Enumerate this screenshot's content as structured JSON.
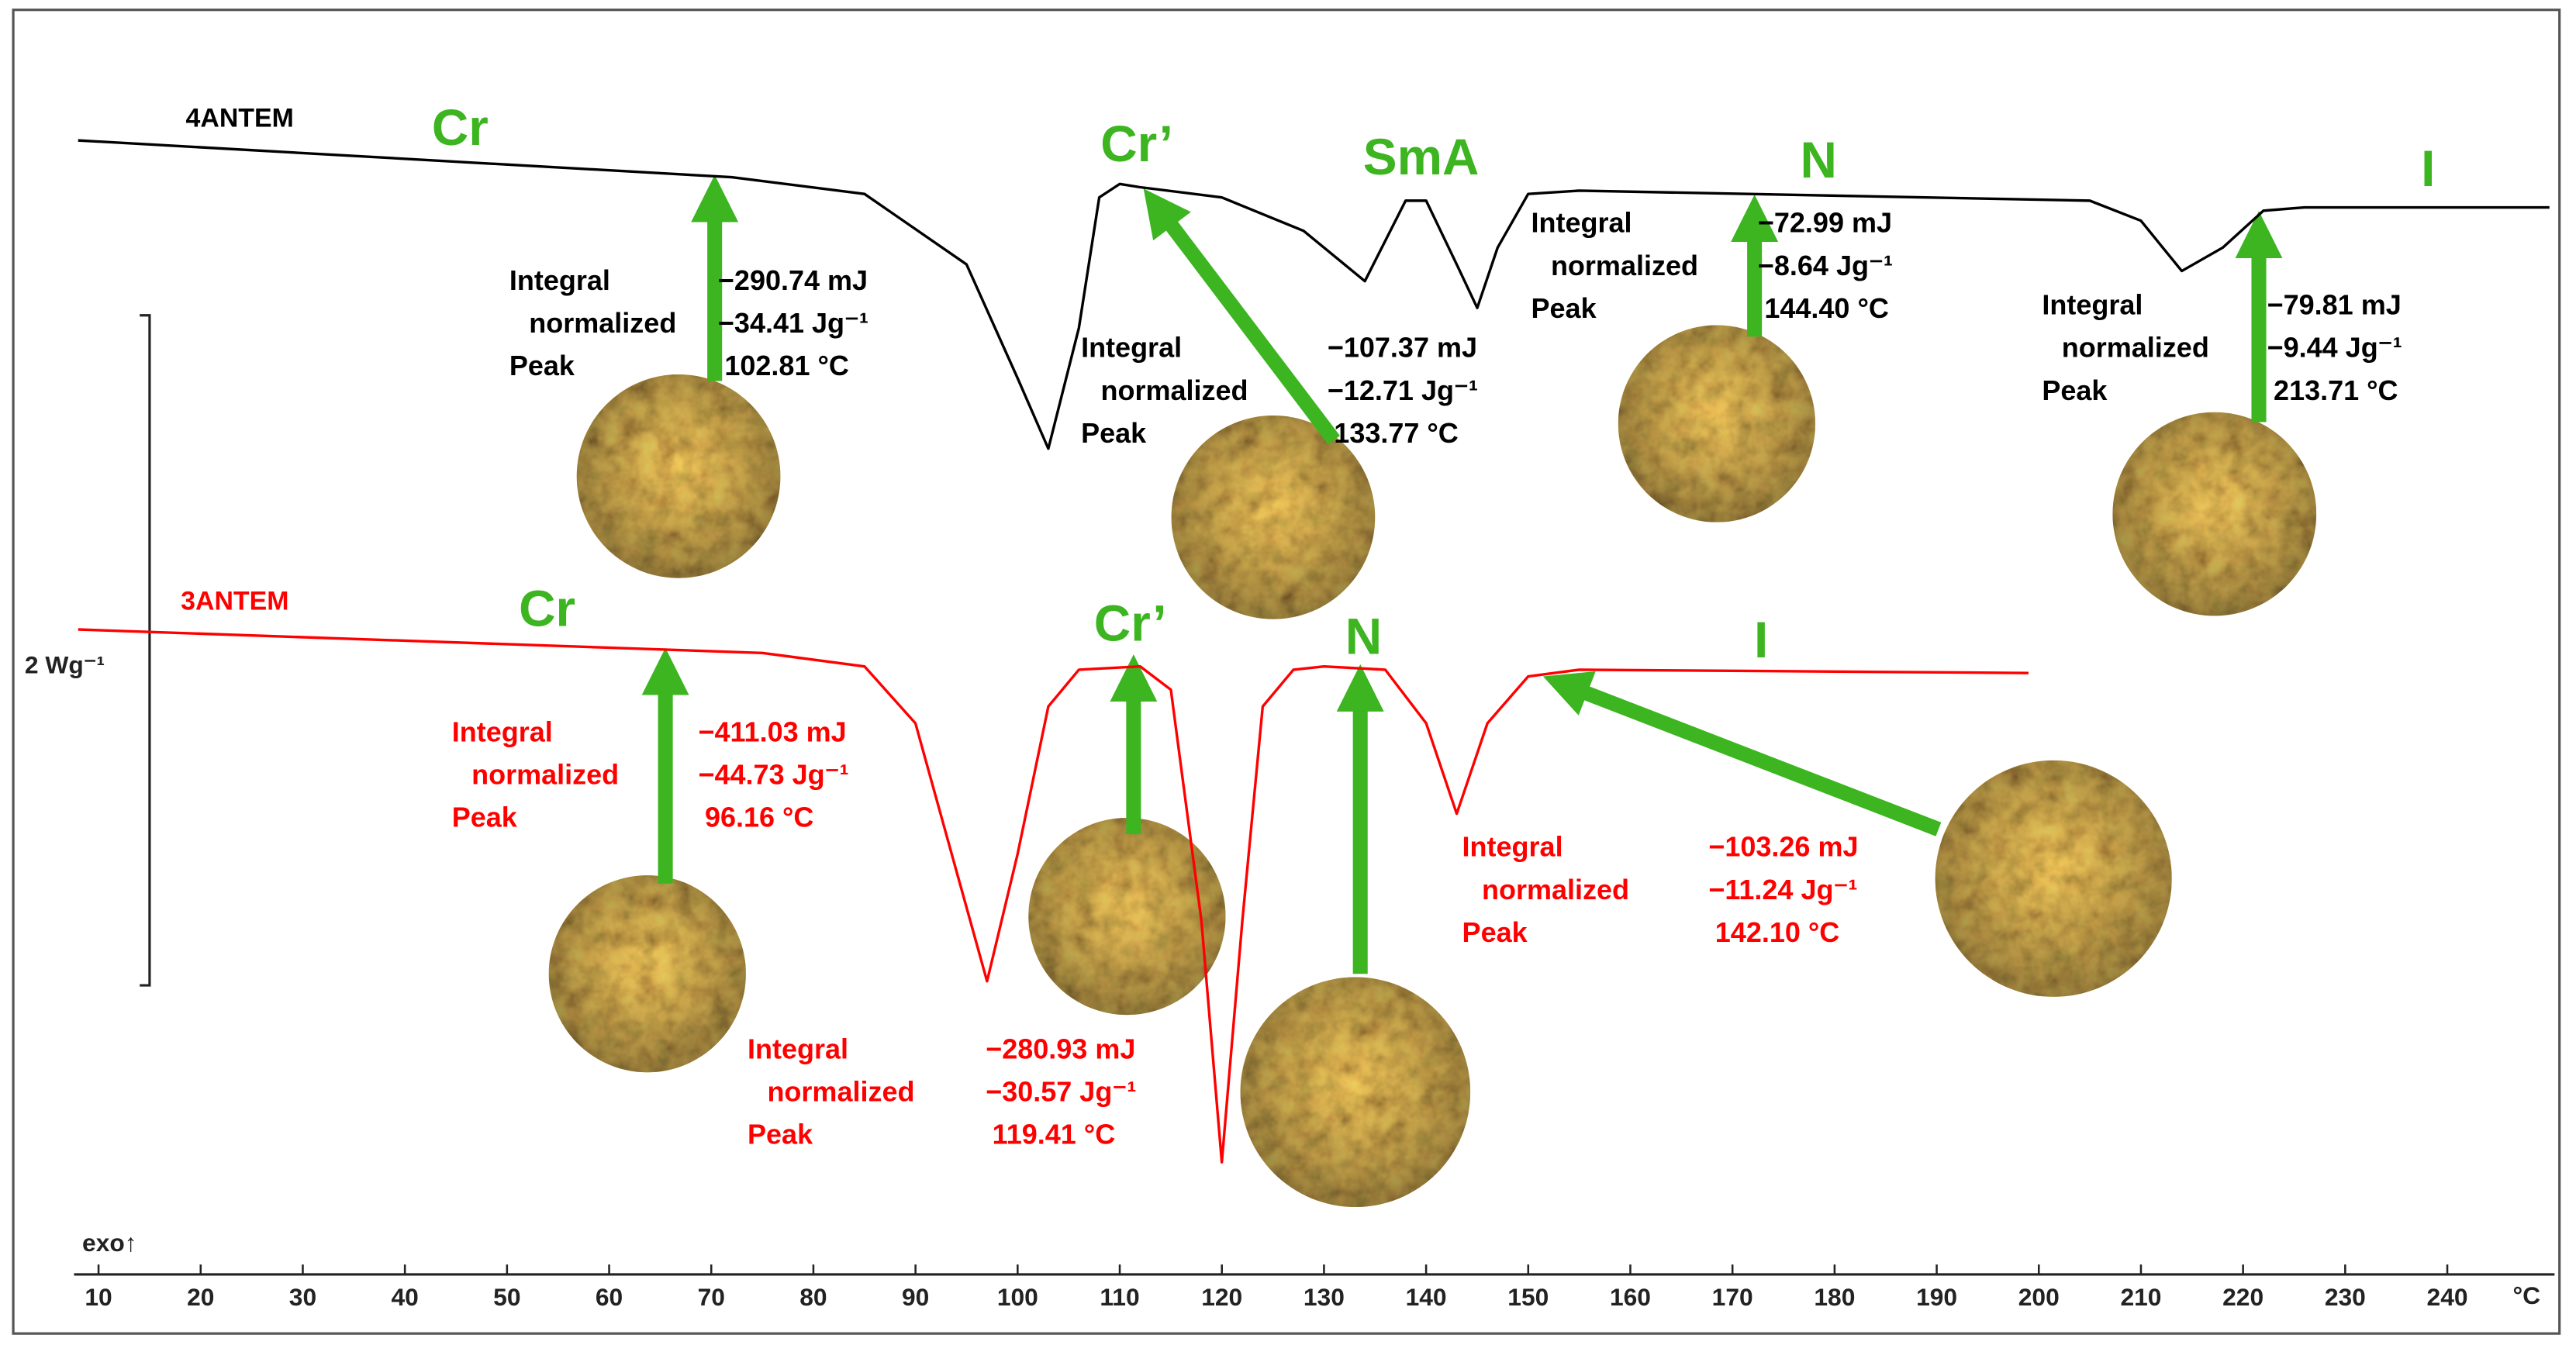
{
  "chart_data": {
    "type": "line",
    "x_label": "°C",
    "corner_label": "exo↑",
    "xlim": [
      7.6,
      250.5
    ],
    "xticks": [
      10,
      20,
      30,
      40,
      50,
      60,
      70,
      80,
      90,
      100,
      110,
      120,
      130,
      140,
      150,
      160,
      170,
      180,
      190,
      200,
      210,
      220,
      230,
      240
    ],
    "ylim": [
      -1.9,
      1.85
    ],
    "scale_bar": {
      "label": "2 Wg⁻¹",
      "value": 2
    },
    "series": [
      {
        "name": "4ANTEM",
        "color": "#000000",
        "x": [
          8,
          72,
          85,
          95,
          100,
          103,
          106,
          108,
          110,
          112,
          120,
          128,
          134,
          138,
          140,
          143,
          145,
          147,
          150,
          155,
          205,
          210,
          214,
          218,
          222,
          226,
          250
        ],
        "values": [
          1.48,
          1.37,
          1.32,
          1.11,
          0.77,
          0.56,
          0.92,
          1.31,
          1.35,
          1.34,
          1.31,
          1.21,
          1.06,
          1.3,
          1.3,
          1.11,
          0.98,
          1.16,
          1.32,
          1.33,
          1.3,
          1.24,
          1.09,
          1.16,
          1.27,
          1.28,
          1.28
        ]
      },
      {
        "name": "3ANTEM",
        "color": "#ff0000",
        "x": [
          8,
          75,
          85,
          90,
          94,
          97,
          100,
          103,
          106,
          112,
          115,
          118,
          120,
          122,
          124,
          127,
          130,
          136,
          140,
          143,
          146,
          150,
          155,
          199
        ],
        "values": [
          0.02,
          -0.05,
          -0.09,
          -0.26,
          -0.7,
          -1.03,
          -0.65,
          -0.21,
          -0.1,
          -0.09,
          -0.16,
          -0.85,
          -1.57,
          -0.85,
          -0.21,
          -0.1,
          -0.09,
          -0.1,
          -0.26,
          -0.53,
          -0.26,
          -0.12,
          -0.1,
          -0.11
        ]
      }
    ],
    "phases": [
      {
        "label": "Cr",
        "color": "#3cb520"
      },
      {
        "label": "Cr’",
        "color": "#3cb520"
      },
      {
        "label": "SmA",
        "color": "#3cb520"
      },
      {
        "label": "N",
        "color": "#3cb520"
      },
      {
        "label": "I",
        "color": "#3cb520"
      },
      {
        "label": "Cr",
        "color": "#3cb520"
      },
      {
        "label": "Cr’",
        "color": "#3cb520"
      },
      {
        "label": "N",
        "color": "#3cb520"
      },
      {
        "label": "I",
        "color": "#3cb520"
      }
    ],
    "annotations": [
      {
        "color": "#000000",
        "labels": [
          "Integral",
          "normalized",
          "Peak"
        ],
        "values": [
          "−290.74 mJ",
          "−34.41 Jg⁻¹",
          "102.81 °C"
        ]
      },
      {
        "color": "#000000",
        "labels": [
          "Integral",
          "normalized",
          "Peak"
        ],
        "values": [
          "−107.37 mJ",
          "−12.71 Jg⁻¹",
          "133.77 °C"
        ]
      },
      {
        "color": "#000000",
        "labels": [
          "Integral",
          "normalized",
          "Peak"
        ],
        "values": [
          "−72.99 mJ",
          "−8.64 Jg⁻¹",
          "144.40 °C"
        ]
      },
      {
        "color": "#000000",
        "labels": [
          "Integral",
          "normalized",
          "Peak"
        ],
        "values": [
          "−79.81 mJ",
          "−9.44 Jg⁻¹",
          "213.71 °C"
        ]
      },
      {
        "color": "#ff0000",
        "labels": [
          "Integral",
          "normalized",
          "Peak"
        ],
        "values": [
          "−411.03 mJ",
          "−44.73 Jg⁻¹",
          "96.16 °C"
        ]
      },
      {
        "color": "#ff0000",
        "labels": [
          "Integral",
          "normalized",
          "Peak"
        ],
        "values": [
          "−280.93 mJ",
          "−30.57 Jg⁻¹",
          "119.41 °C"
        ]
      },
      {
        "color": "#ff0000",
        "labels": [
          "Integral",
          "normalized",
          "Peak"
        ],
        "values": [
          "−103.26 mJ",
          "−11.24 Jg⁻¹",
          "142.10 °C"
        ]
      }
    ]
  }
}
